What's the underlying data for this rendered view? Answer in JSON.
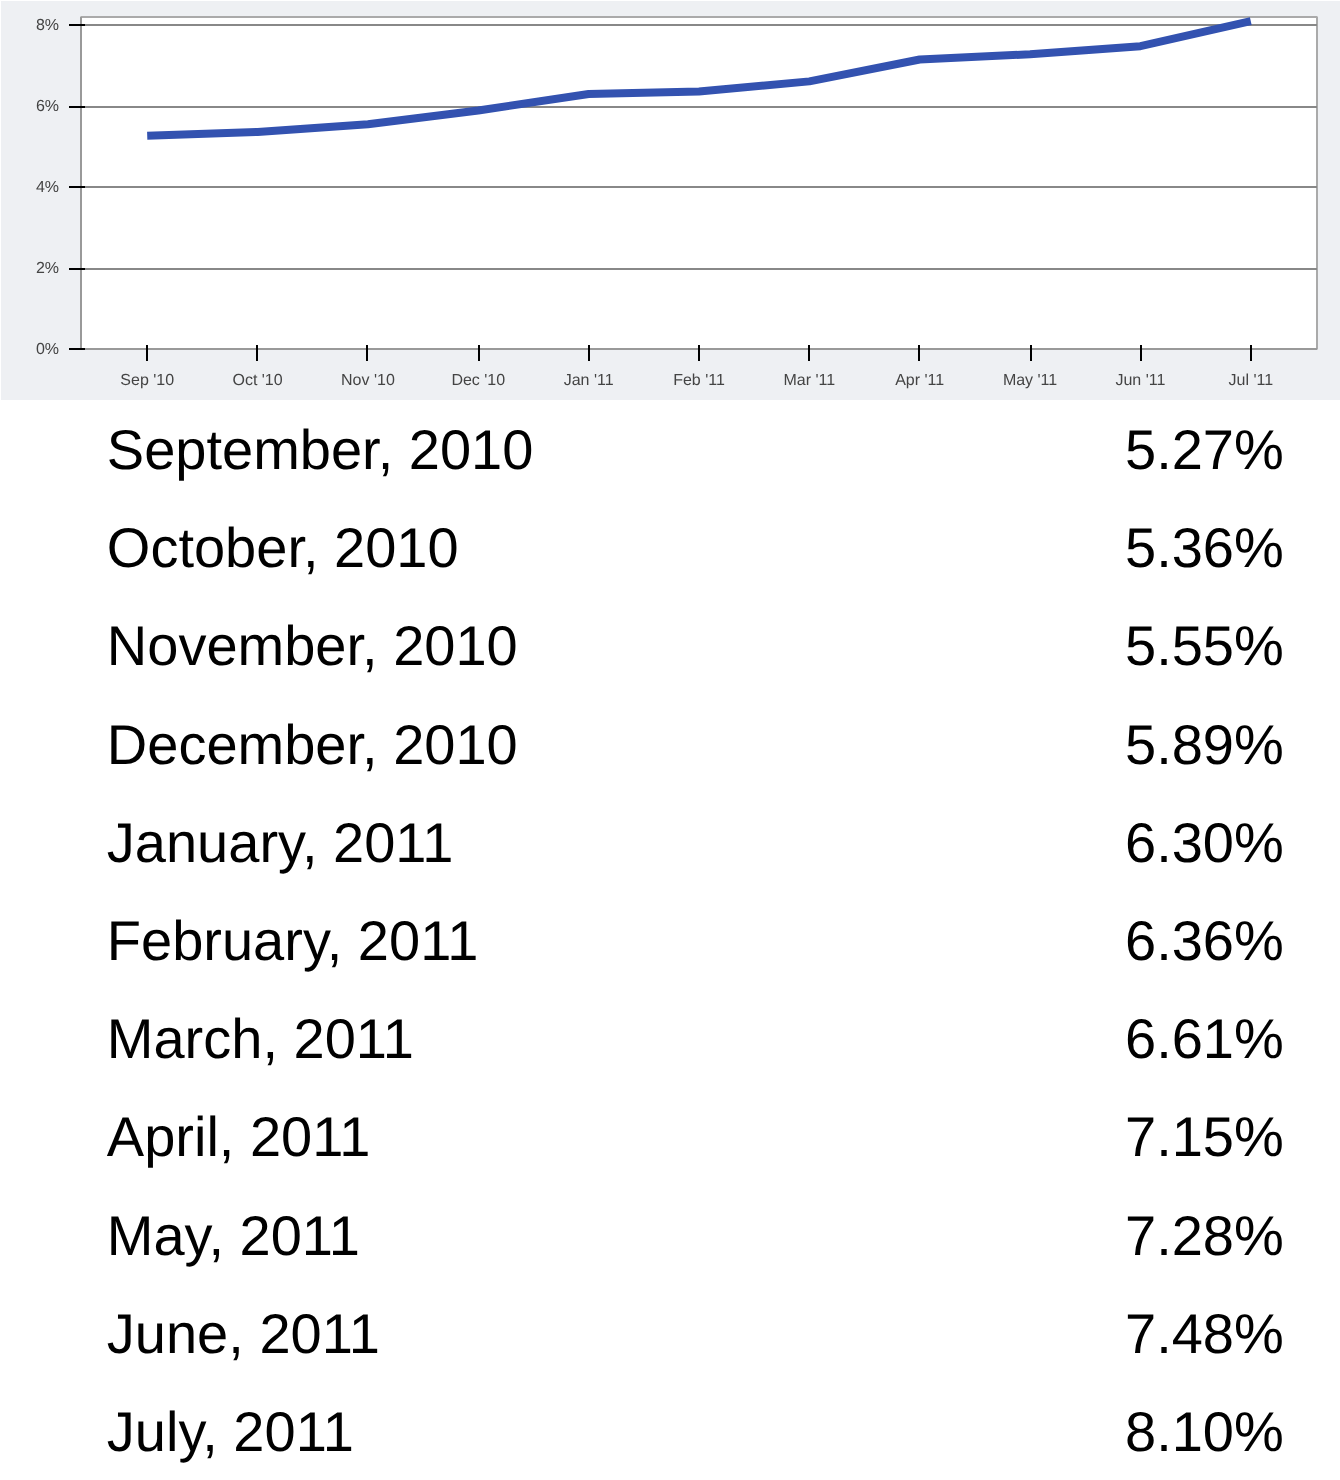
{
  "chart_data": [
    {
      "type": "line",
      "categories": [
        "Sep '10",
        "Oct '10",
        "Nov '10",
        "Dec '10",
        "Jan '11",
        "Feb '11",
        "Mar '11",
        "Apr '11",
        "May '11",
        "Jun '11",
        "Jul '11"
      ],
      "series": [
        {
          "color": "#3352b0",
          "values": [
            5.27,
            5.36,
            5.55,
            5.89,
            6.3,
            6.36,
            6.61,
            7.15,
            7.28,
            7.48,
            8.1
          ]
        }
      ],
      "ylim": [
        0,
        8.2
      ],
      "yticks": [
        {
          "value": 0,
          "label": "0%"
        },
        {
          "value": 2,
          "label": "2%"
        },
        {
          "value": 4,
          "label": "4%"
        },
        {
          "value": 6,
          "label": "6%"
        },
        {
          "value": 8,
          "label": "8%"
        }
      ],
      "grid": "y"
    },
    {
      "type": "other",
      "categories": [
        "September, 2010",
        "October, 2010",
        "November, 2010",
        "December, 2010",
        "January, 2011",
        "February, 2011",
        "March, 2011",
        "April, 2011",
        "May, 2011",
        "June, 2011",
        "July, 2011"
      ],
      "value_labels": [
        "5.27%",
        "5.36%",
        "5.55%",
        "5.89%",
        "6.30%",
        "6.36%",
        "6.61%",
        "7.15%",
        "7.28%",
        "7.48%",
        "8.10%"
      ]
    }
  ]
}
